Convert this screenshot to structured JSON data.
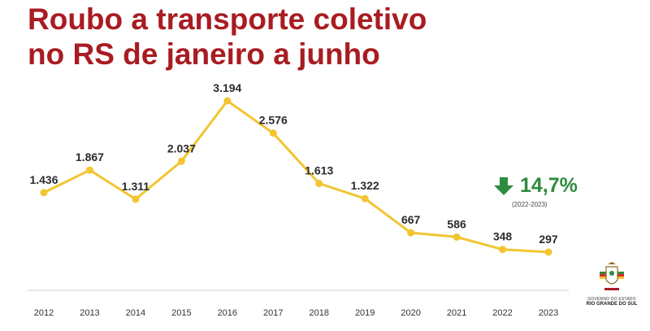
{
  "title": {
    "line1": "Roubo a transporte coletivo",
    "line2": "no RS de janeiro a junho"
  },
  "colors": {
    "title": "#a81c22",
    "line": "#f2c531",
    "decrease": "#2e8b3e",
    "axis": "#cccccc"
  },
  "chart_data": {
    "type": "line",
    "categories": [
      "2012",
      "2013",
      "2014",
      "2015",
      "2016",
      "2017",
      "2018",
      "2019",
      "2020",
      "2021",
      "2022",
      "2023"
    ],
    "values": [
      1436,
      1867,
      1311,
      2037,
      3194,
      2576,
      1613,
      1322,
      667,
      586,
      348,
      297
    ],
    "labels": [
      "1.436",
      "1.867",
      "1.311",
      "2.037",
      "3.194",
      "2.576",
      "1.613",
      "1.322",
      "667",
      "586",
      "348",
      "297"
    ],
    "ylim": [
      0,
      3194
    ],
    "grid": false,
    "legend": "none"
  },
  "callout": {
    "icon": "down-arrow-icon",
    "value": "14,7%",
    "period": "(2022-2023)"
  },
  "logo": {
    "line1": "GOVERNO DO ESTADO",
    "line2": "RIO GRANDE DO SUL"
  }
}
